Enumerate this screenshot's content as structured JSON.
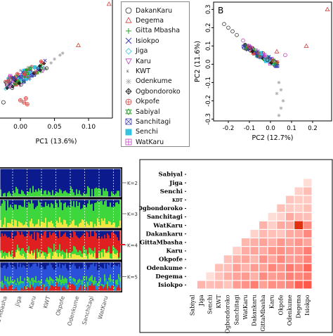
{
  "pca_a": {
    "xlabel": "PC1 (13.6%)",
    "xticks": [
      "0.00",
      "0.05",
      "0.10"
    ],
    "chart_data": {
      "type": "scatter",
      "xlim": [
        -0.03,
        0.135
      ],
      "ylim": [
        -0.2,
        0.1
      ]
    }
  },
  "legend": {
    "entries": [
      {
        "name": "DakanKaru",
        "symbol": "circle",
        "color": "#333333"
      },
      {
        "name": "Degema",
        "symbol": "triangle",
        "color": "#d43f3a"
      },
      {
        "name": "Gitta Mbasha",
        "symbol": "plus",
        "color": "#2ca02c"
      },
      {
        "name": "Isiokpo",
        "symbol": "x",
        "color": "#3b3bb3"
      },
      {
        "name": "Jiga",
        "symbol": "diamond",
        "color": "#33c3e0"
      },
      {
        "name": "Karu",
        "symbol": "tridown",
        "color": "#c040c0"
      },
      {
        "name": "KWT",
        "symbol": "text",
        "color": "#222222"
      },
      {
        "name": "Odenkume",
        "symbol": "star",
        "color": "#b0b0b0"
      },
      {
        "name": "Ogbondoroko",
        "symbol": "crossdia",
        "color": "#111111"
      },
      {
        "name": "Okpofe",
        "symbol": "circleplus",
        "color": "#d43f3a"
      },
      {
        "name": "Sabiyal",
        "symbol": "hexstar",
        "color": "#2ca02c"
      },
      {
        "name": "Sanchitagi",
        "symbol": "boxx",
        "color": "#3b3bb3"
      },
      {
        "name": "Senchi",
        "symbol": "square",
        "color": "#33c3e0"
      },
      {
        "name": "WatKaru",
        "symbol": "boxcross",
        "color": "#c040c0"
      }
    ]
  },
  "pca_b": {
    "panel_label": "B",
    "xlabel": "PC2 (12.7%)",
    "ylabel": "PC2 (11.6%)",
    "xticks": [
      "-0.2",
      "-0.1",
      "0.0",
      "0.1",
      "0.2"
    ],
    "yticks": [
      "0.3",
      "0.2",
      "0.1",
      "0.0",
      "-0.1",
      "-0.2",
      "-0.3"
    ],
    "chart_data": {
      "type": "scatter",
      "xlim": [
        -0.27,
        0.29
      ],
      "ylim": [
        -0.31,
        0.34
      ]
    }
  },
  "admixture": {
    "k_labels": [
      "K=2",
      "K=3",
      "K=4",
      "K=5"
    ],
    "pop_labels": [
      "Gitta Mbasha",
      "Jiga",
      "Karu",
      "KWT",
      "Okpofe",
      "Odenkume",
      "Sanchitagi",
      "WatKaru"
    ],
    "colors": [
      "#0b1a8c",
      "#3dd63d",
      "#f0e63c",
      "#e02020",
      "#2a4fd8",
      "#1a8cd8",
      "#ff8c1a"
    ]
  },
  "heatmap": {
    "chart_data": {
      "type": "heatmap",
      "rows": [
        "Sabiyal",
        "Jiga",
        "Senchi",
        "KDT",
        "Ogbondoroko",
        "Sanchitagi",
        "WatKaru",
        "Dakankaru",
        "GittaMbasha",
        "Karu",
        "Okpofe",
        "Odenkume",
        "Degema",
        "Isiokpo"
      ],
      "columns": [
        "Sabiyal",
        "Jiga",
        "Senchi",
        "KWT",
        "Ogbondoroko",
        "Sanchitagi",
        "WatKaru",
        "Dakankaru",
        "GittaMbasha",
        "Karu",
        "Okpofe",
        "Odenkume",
        "Degema",
        "Isiokpo"
      ]
    }
  }
}
